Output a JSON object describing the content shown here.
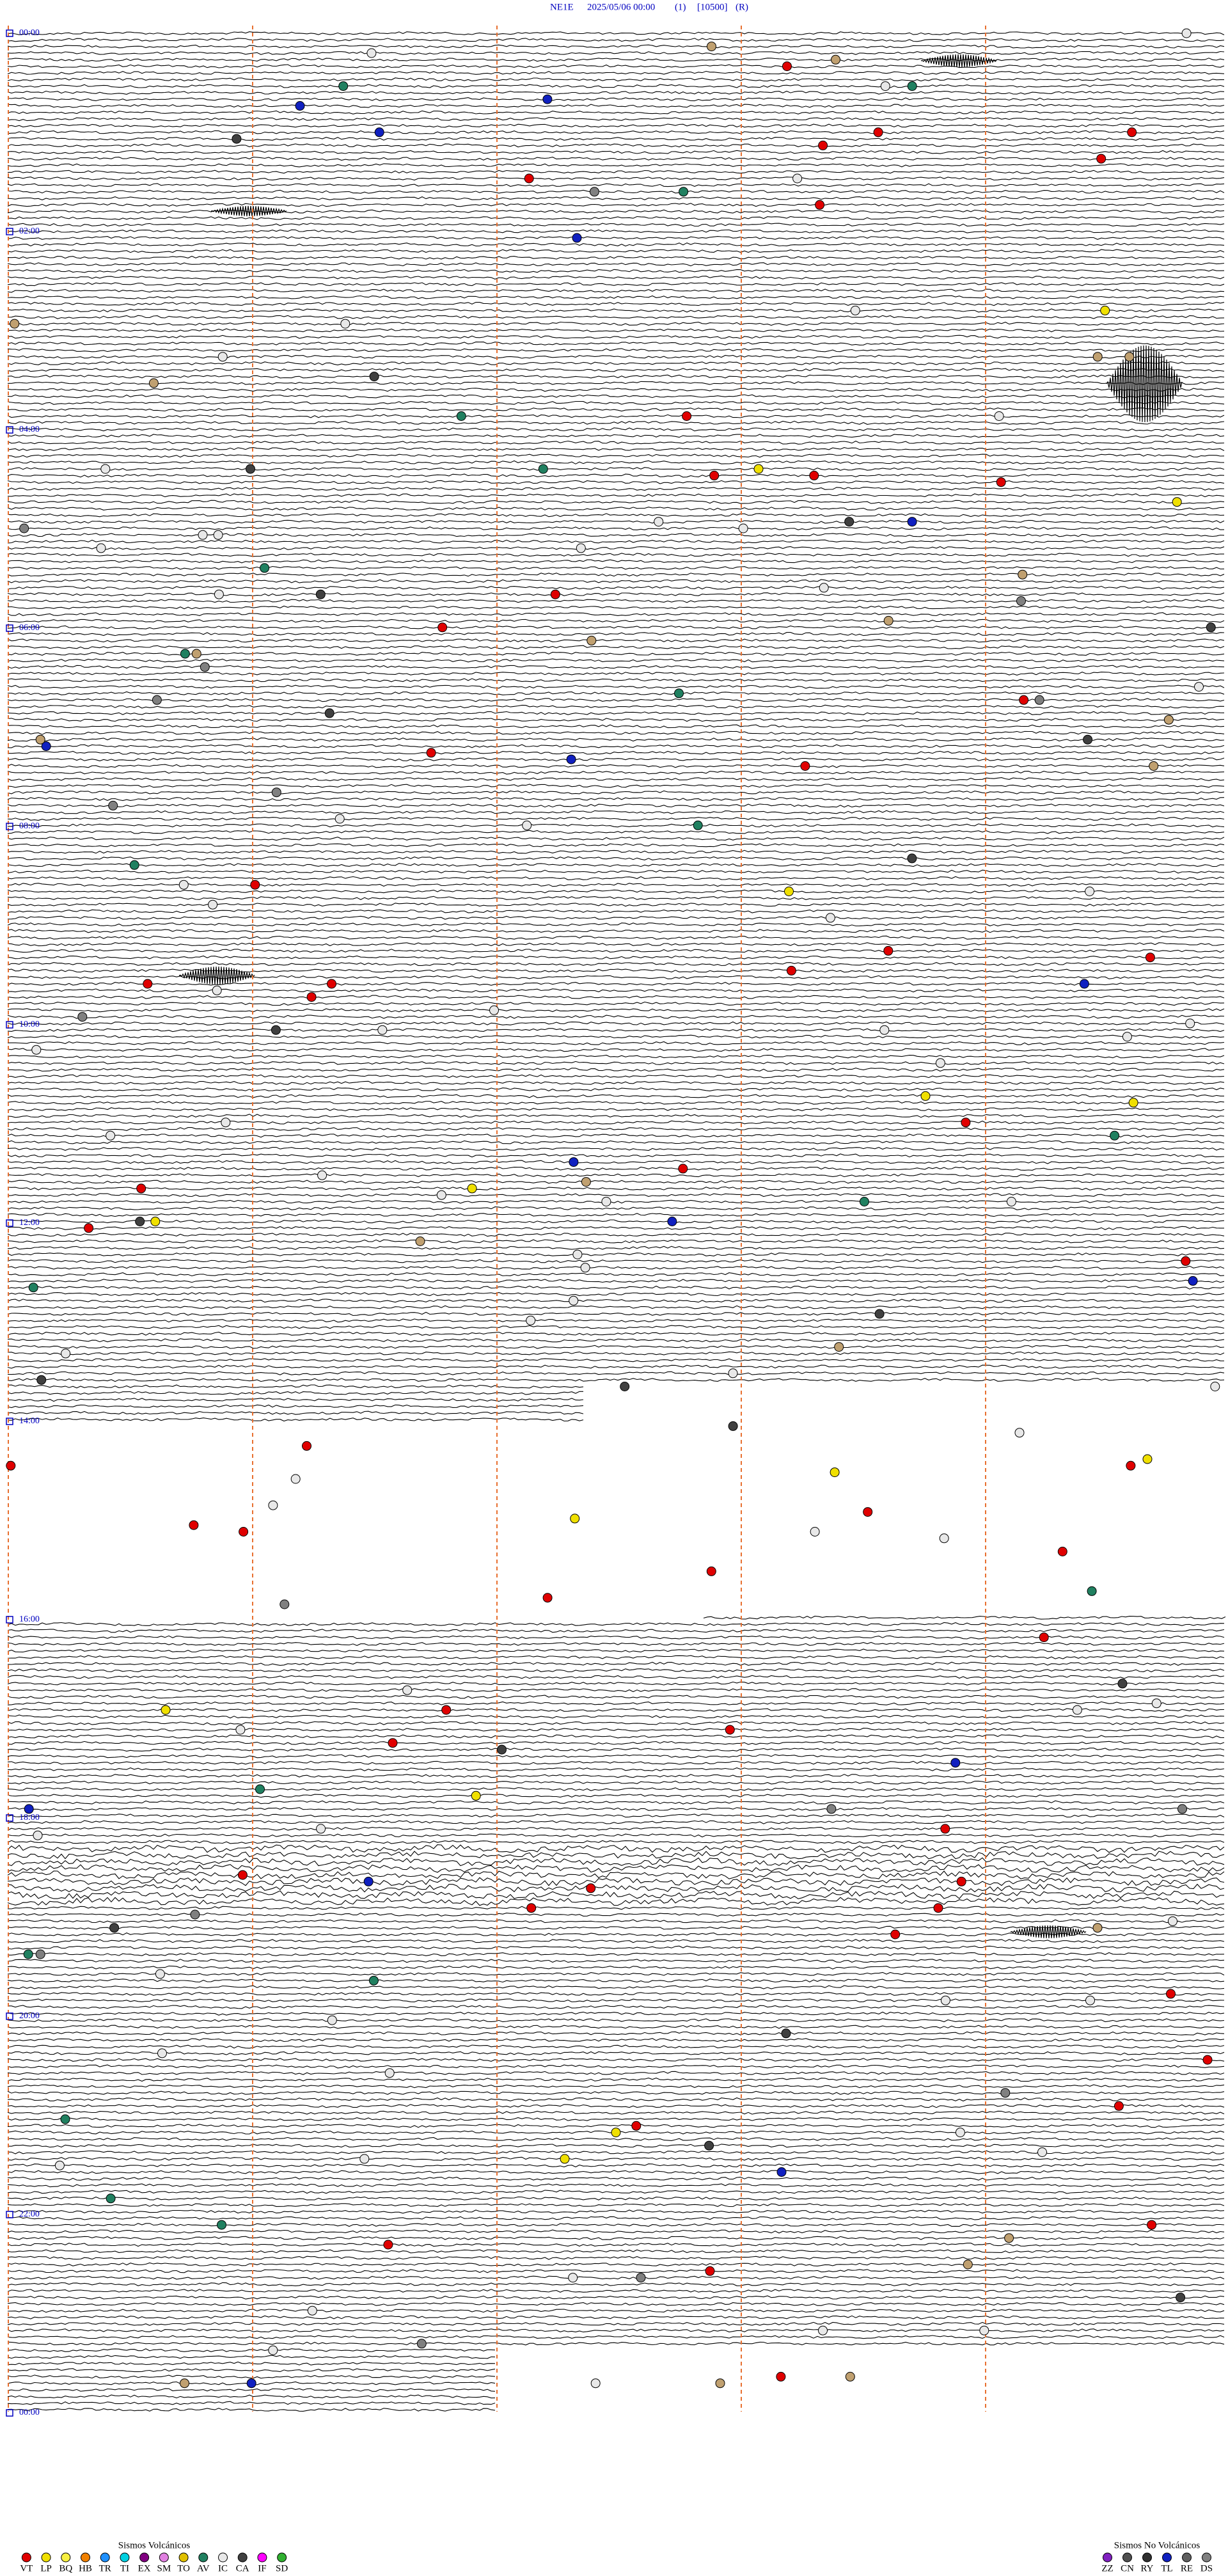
{
  "header": {
    "station": "NE1E",
    "datetime": "2025/05/06 00:00",
    "channel": "(1)",
    "gain": "[10500]",
    "mode": "(R)"
  },
  "time_labels": [
    "00:00",
    "02:00",
    "04:00",
    "06:00",
    "08:00",
    "10:00",
    "12:00",
    "14:00",
    "16:00",
    "18:00",
    "20:00",
    "22:00",
    "00:00"
  ],
  "legend_volcanic": {
    "title": "Sismos Volcánicos",
    "items": [
      {
        "code": "VT",
        "color": "#e00000"
      },
      {
        "code": "LP",
        "color": "#f0e000"
      },
      {
        "code": "BQ",
        "color": "#f8f040"
      },
      {
        "code": "HB",
        "color": "#f08000"
      },
      {
        "code": "TR",
        "color": "#1e90ff"
      },
      {
        "code": "TI",
        "color": "#00d0e0"
      },
      {
        "code": "EX",
        "color": "#800080"
      },
      {
        "code": "SM",
        "color": "#e080e0"
      },
      {
        "code": "TO",
        "color": "#e0c000"
      },
      {
        "code": "AV",
        "color": "#208060"
      },
      {
        "code": "IC",
        "color": "#e8e8e8"
      },
      {
        "code": "CA",
        "color": "#404040"
      },
      {
        "code": "IF",
        "color": "#ff00ff"
      },
      {
        "code": "SD",
        "color": "#30b030"
      }
    ]
  },
  "legend_non_volcanic": {
    "title": "Sismos No Volcánicos",
    "items": [
      {
        "code": "ZZ",
        "color": "#8020c0"
      },
      {
        "code": "CN",
        "color": "#505050"
      },
      {
        "code": "RY",
        "color": "#303030"
      },
      {
        "code": "TL",
        "color": "#1020c0"
      },
      {
        "code": "RE",
        "color": "#606060"
      },
      {
        "code": "DS",
        "color": "#808080"
      }
    ]
  }
}
